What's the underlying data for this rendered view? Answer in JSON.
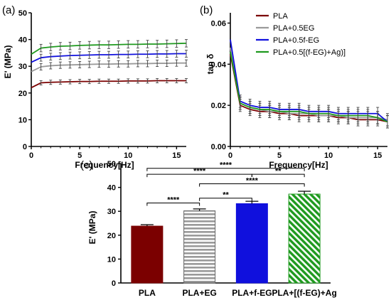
{
  "colors": {
    "pla": "#7b0000",
    "eg": "#9a9a9a",
    "feg": "#1010dd",
    "fegag": "#1f9a1f"
  },
  "chart_data": [
    {
      "type": "line",
      "panel_label": "(a)",
      "xlabel": "Frequency[Hz]",
      "ylabel": "E' (MPa)",
      "xlim": [
        0,
        16
      ],
      "ylim": [
        0,
        50
      ],
      "xticks": [
        0,
        5,
        10,
        15
      ],
      "yticks": [
        0,
        10,
        20,
        30,
        40,
        50
      ],
      "x": [
        0,
        1,
        2,
        3,
        4,
        5,
        6,
        7,
        8,
        9,
        10,
        11,
        12,
        13,
        14,
        15,
        16
      ],
      "series": [
        {
          "name": "PLA",
          "values": [
            22,
            23.8,
            24,
            24.1,
            24.2,
            24.3,
            24.3,
            24.4,
            24.4,
            24.4,
            24.5,
            24.5,
            24.5,
            24.6,
            24.6,
            24.6,
            24.6
          ],
          "error": 0.8
        },
        {
          "name": "PLA+0.5EG",
          "values": [
            28,
            29.8,
            30.2,
            30.4,
            30.5,
            30.6,
            30.7,
            30.8,
            30.8,
            30.9,
            30.9,
            31.0,
            31.0,
            31.1,
            31.1,
            31.2,
            31.2
          ],
          "error": 1.2
        },
        {
          "name": "PLA+0.5f-EG",
          "values": [
            31.5,
            33.2,
            33.6,
            33.8,
            34.0,
            34.1,
            34.2,
            34.3,
            34.3,
            34.4,
            34.4,
            34.5,
            34.5,
            34.6,
            34.6,
            34.7,
            34.7
          ],
          "error": 1.3
        },
        {
          "name": "PLA+0.5[(f-EG)+Ag)]",
          "values": [
            34.5,
            36.8,
            37.2,
            37.5,
            37.6,
            37.8,
            37.9,
            38.0,
            38.0,
            38.1,
            38.2,
            38.2,
            38.3,
            38.3,
            38.4,
            38.5,
            38.6
          ],
          "error": 1.4
        }
      ]
    },
    {
      "type": "line",
      "panel_label": "(b)",
      "xlabel": "Frequency[Hz]",
      "ylabel": "tan δ",
      "xlim": [
        0,
        16
      ],
      "ylim": [
        0,
        0.065
      ],
      "xticks": [
        0,
        5,
        10,
        15
      ],
      "yticks": [
        0.0,
        0.02,
        0.04,
        0.06
      ],
      "legend": "top-right",
      "x": [
        0,
        1,
        2,
        3,
        4,
        5,
        6,
        7,
        8,
        9,
        10,
        11,
        12,
        13,
        14,
        15,
        16
      ],
      "series": [
        {
          "name": "PLA",
          "values": [
            0.045,
            0.02,
            0.018,
            0.017,
            0.017,
            0.016,
            0.016,
            0.015,
            0.015,
            0.015,
            0.015,
            0.014,
            0.014,
            0.013,
            0.013,
            0.013,
            0.012
          ],
          "error": 0.003
        },
        {
          "name": "PLA+0.5EG",
          "values": [
            0.048,
            0.021,
            0.019,
            0.018,
            0.017,
            0.017,
            0.016,
            0.016,
            0.016,
            0.015,
            0.015,
            0.015,
            0.014,
            0.014,
            0.014,
            0.014,
            0.013
          ],
          "error": 0.003
        },
        {
          "name": "PLA+0.5f-EG",
          "values": [
            0.052,
            0.022,
            0.02,
            0.019,
            0.019,
            0.018,
            0.018,
            0.018,
            0.017,
            0.017,
            0.017,
            0.016,
            0.016,
            0.016,
            0.016,
            0.016,
            0.012
          ],
          "error": 0.003
        },
        {
          "name": "PLA+0.5[(f-EG)+Ag)]",
          "values": [
            0.046,
            0.021,
            0.019,
            0.018,
            0.018,
            0.017,
            0.017,
            0.017,
            0.016,
            0.016,
            0.016,
            0.015,
            0.015,
            0.015,
            0.015,
            0.014,
            0.012
          ],
          "error": 0.003
        }
      ]
    },
    {
      "type": "bar",
      "panel_label": "(c)",
      "xlabel": "",
      "ylabel": "E' (MPa)",
      "ylim": [
        0,
        50
      ],
      "yticks": [
        0,
        10,
        20,
        30,
        40,
        50
      ],
      "categories": [
        "PLA",
        "PLA+EG",
        "PLA+f-EG",
        "PLA+[(f-EG)+Ag"
      ],
      "values": [
        23.8,
        30.2,
        33.2,
        37.2
      ],
      "errors": [
        0.6,
        0.8,
        1.0,
        1.2
      ],
      "patterns": [
        "solid",
        "horizontal-stripes",
        "solid",
        "diagonal-stripes"
      ],
      "significance": [
        {
          "from": 0,
          "to": 3,
          "label": "****",
          "y": 48
        },
        {
          "from": 0,
          "to": 2,
          "label": "****",
          "y": 45.5
        },
        {
          "from": 2,
          "to": 3,
          "label": "**",
          "y": 45.5
        },
        {
          "from": 1,
          "to": 3,
          "label": "****",
          "y": 41.5
        },
        {
          "from": 0,
          "to": 1,
          "label": "****",
          "y": 33.5
        },
        {
          "from": 1,
          "to": 2,
          "label": "**",
          "y": 35.5
        }
      ]
    }
  ]
}
